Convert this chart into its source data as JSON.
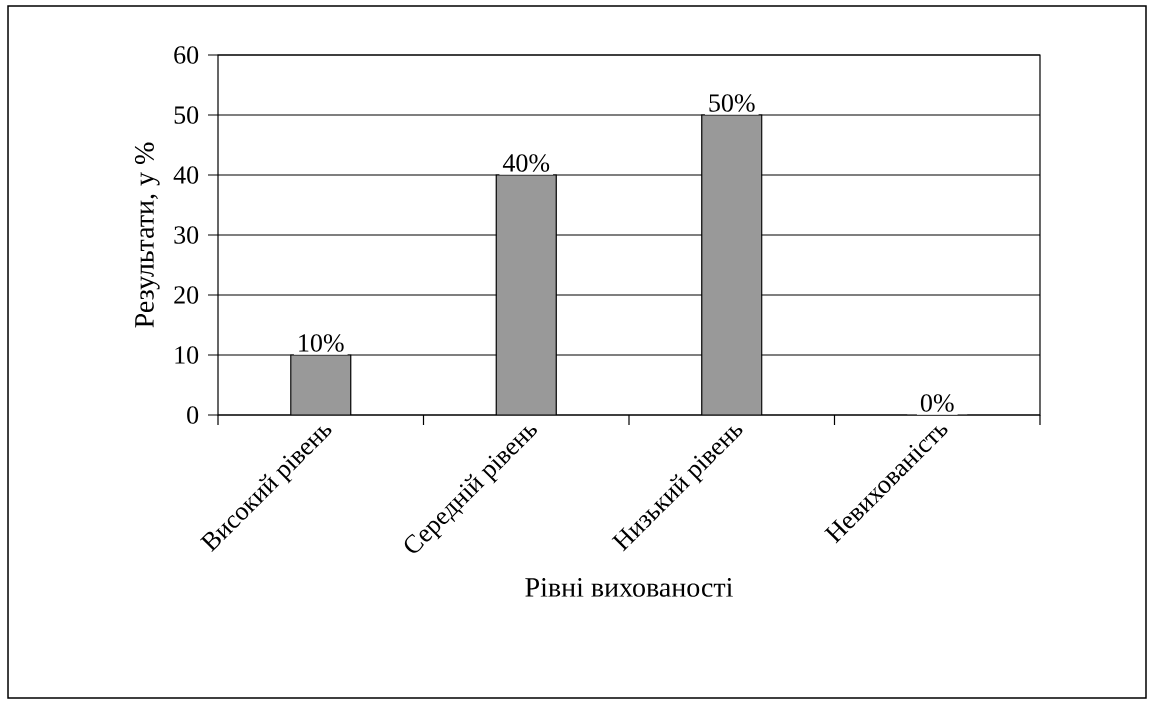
{
  "chart_data": {
    "type": "bar",
    "xlabel": "Рівні вихованості",
    "ylabel": "Результати, у %",
    "categories": [
      "Високий рівень",
      "Середній рівень",
      "Низький рівень",
      "Невихованість"
    ],
    "values": [
      10,
      40,
      50,
      0
    ],
    "value_labels": [
      "10%",
      "40%",
      "50%",
      "0%"
    ],
    "color": "#999999",
    "ylim": [
      0,
      60
    ],
    "yticks": [
      0,
      10,
      20,
      30,
      40,
      50,
      60
    ],
    "grid": "y"
  }
}
